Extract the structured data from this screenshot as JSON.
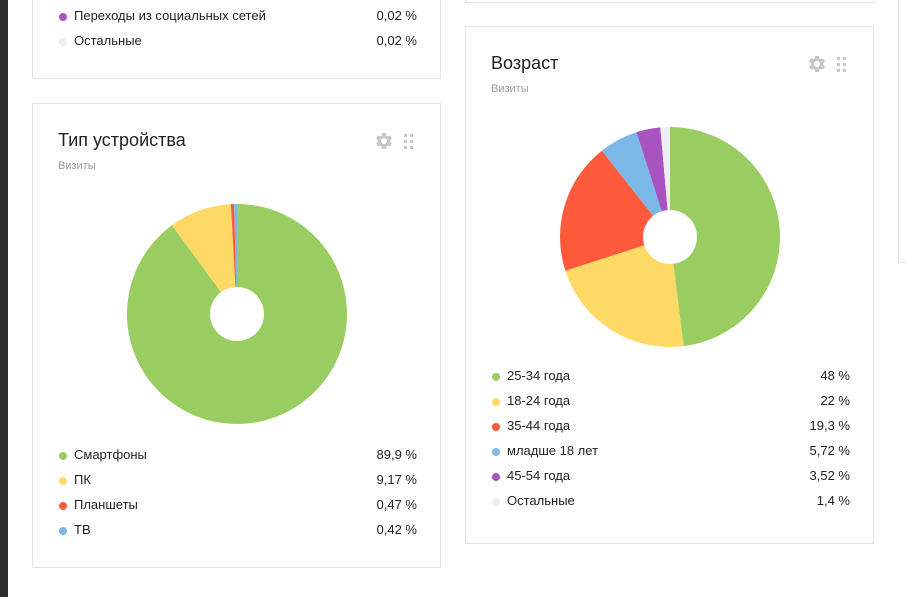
{
  "colors": {
    "green": "#9acd61",
    "yellow": "#ffd966",
    "red": "#ff5a3c",
    "blue": "#7bb8e8",
    "purple": "#a953c2",
    "light": "#eeeeee"
  },
  "top_card": {
    "legend": [
      {
        "label": "Переходы из социальных сетей",
        "value": "0,02 %",
        "color": "#a953c2"
      },
      {
        "label": "Остальные",
        "value": "0,02 %",
        "color": "#eeeeee"
      }
    ]
  },
  "device_card": {
    "title": "Тип устройства",
    "subtitle": "Визиты",
    "settings_icon": "gear-icon",
    "drag_icon": "drag-handle-icon",
    "legend": [
      {
        "label": "Смартфоны",
        "value": "89,9 %",
        "color": "#9acd61"
      },
      {
        "label": "ПК",
        "value": "9,17 %",
        "color": "#ffd966"
      },
      {
        "label": "Планшеты",
        "value": "0,47 %",
        "color": "#ff5a3c"
      },
      {
        "label": "ТВ",
        "value": "0,42 %",
        "color": "#7bb8e8"
      }
    ]
  },
  "age_card": {
    "title": "Возраст",
    "subtitle": "Визиты",
    "settings_icon": "gear-icon",
    "drag_icon": "drag-handle-icon",
    "legend": [
      {
        "label": "25-34 года",
        "value": "48 %",
        "color": "#9acd61"
      },
      {
        "label": "18-24 года",
        "value": "22 %",
        "color": "#ffd966"
      },
      {
        "label": "35-44 года",
        "value": "19,3 %",
        "color": "#ff5a3c"
      },
      {
        "label": "младше 18 лет",
        "value": "5,72 %",
        "color": "#7bb8e8"
      },
      {
        "label": "45-54 года",
        "value": "3,52 %",
        "color": "#a953c2"
      },
      {
        "label": "Остальные",
        "value": "1,4 %",
        "color": "#eeeeee"
      }
    ]
  },
  "chart_data": [
    {
      "type": "pie",
      "title": "Тип устройства",
      "subtitle": "Визиты",
      "categories": [
        "Смартфоны",
        "ПК",
        "Планшеты",
        "ТВ"
      ],
      "values": [
        89.9,
        9.17,
        0.47,
        0.42
      ],
      "colors": [
        "#9acd61",
        "#ffd966",
        "#ff5a3c",
        "#7bb8e8"
      ],
      "legend": "bottom"
    },
    {
      "type": "pie",
      "title": "Возраст",
      "subtitle": "Визиты",
      "categories": [
        "25-34 года",
        "18-24 года",
        "35-44 года",
        "младше 18 лет",
        "45-54 года",
        "Остальные"
      ],
      "values": [
        48,
        22,
        19.3,
        5.72,
        3.52,
        1.4
      ],
      "colors": [
        "#9acd61",
        "#ffd966",
        "#ff5a3c",
        "#7bb8e8",
        "#a953c2",
        "#eeeeee"
      ],
      "legend": "bottom"
    }
  ]
}
